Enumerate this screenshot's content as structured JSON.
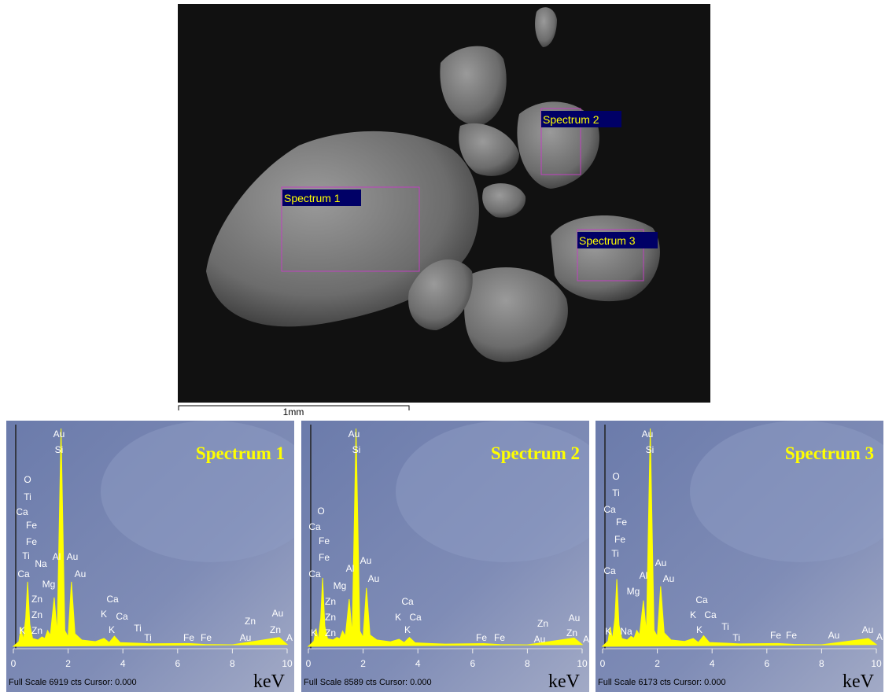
{
  "image": {
    "labels": [
      "Spectrum 1",
      "Spectrum 2",
      "Spectrum 3"
    ],
    "scale_bar": "1mm"
  },
  "chart_data": [
    {
      "type": "line",
      "title": "Spectrum 1",
      "footer": "Full Scale 6919 cts Cursor: 0.000",
      "x_label": "keV",
      "color": "#ffff00",
      "xlim": [
        0,
        10
      ],
      "xticks": [
        0,
        2,
        4,
        6,
        8,
        10
      ],
      "ylim": [
        0,
        6919
      ],
      "x": [
        0,
        0.2,
        0.28,
        0.36,
        0.45,
        0.52,
        0.6,
        0.7,
        0.9,
        1.04,
        1.15,
        1.25,
        1.35,
        1.49,
        1.6,
        1.74,
        1.88,
        2.0,
        2.12,
        2.25,
        2.5,
        3.0,
        3.31,
        3.5,
        3.69,
        3.9,
        4.51,
        5.0,
        6.4,
        7.0,
        8.0,
        9.71,
        10.0
      ],
      "values": [
        0,
        150,
        600,
        200,
        900,
        2050,
        700,
        250,
        200,
        300,
        250,
        500,
        350,
        1550,
        400,
        6919,
        500,
        300,
        2050,
        400,
        200,
        150,
        250,
        120,
        320,
        120,
        100,
        80,
        90,
        60,
        50,
        280,
        60
      ],
      "annotations": [
        "Au",
        "Si",
        "O",
        "Ti",
        "Ca",
        "Fe",
        "Fe",
        "Ti",
        "Na",
        "Al",
        "Au",
        "Ca",
        "Mg",
        "Au",
        "Zn",
        "Zn",
        "Zn",
        "K",
        "Ca",
        "K",
        "Ca",
        "K",
        "Ti",
        "Ti",
        "Fe",
        "Fe",
        "Zn",
        "Au",
        "Au",
        "Zn",
        "A"
      ]
    },
    {
      "type": "line",
      "title": "Spectrum 2",
      "footer": "Full Scale 8589 cts Cursor: 0.000",
      "x_label": "keV",
      "color": "#ffff00",
      "xlim": [
        0,
        10
      ],
      "xticks": [
        0,
        2,
        4,
        6,
        8,
        10
      ],
      "ylim": [
        0,
        8589
      ],
      "x": [
        0,
        0.2,
        0.28,
        0.36,
        0.45,
        0.52,
        0.6,
        0.7,
        0.9,
        1.04,
        1.15,
        1.25,
        1.35,
        1.49,
        1.6,
        1.74,
        1.88,
        2.0,
        2.12,
        2.25,
        2.5,
        3.0,
        3.31,
        3.5,
        3.69,
        3.9,
        4.51,
        5.0,
        6.4,
        7.0,
        8.0,
        9.71,
        10.0
      ],
      "values": [
        0,
        200,
        700,
        250,
        1100,
        2700,
        800,
        300,
        250,
        350,
        300,
        600,
        400,
        1860,
        450,
        8589,
        600,
        350,
        2300,
        450,
        250,
        180,
        280,
        150,
        350,
        140,
        110,
        90,
        110,
        70,
        60,
        330,
        70
      ],
      "annotations": [
        "Au",
        "Si",
        "O",
        "Ca",
        "Fe",
        "Fe",
        "Ca",
        "Al",
        "Au",
        "Mg",
        "Au",
        "Zn",
        "Zn",
        "Zn",
        "K",
        "Ca",
        "K",
        "Ca",
        "K",
        "Fe",
        "Fe",
        "Zn",
        "Au",
        "Au",
        "Zn",
        "A"
      ]
    },
    {
      "type": "line",
      "title": "Spectrum 3",
      "footer": "Full Scale 6173 cts Cursor: 0.000",
      "x_label": "keV",
      "color": "#ffff00",
      "xlim": [
        0,
        10
      ],
      "xticks": [
        0,
        2,
        4,
        6,
        8,
        10
      ],
      "ylim": [
        0,
        6173
      ],
      "x": [
        0,
        0.2,
        0.28,
        0.36,
        0.45,
        0.52,
        0.6,
        0.7,
        0.9,
        1.04,
        1.15,
        1.25,
        1.35,
        1.49,
        1.6,
        1.74,
        1.88,
        2.0,
        2.12,
        2.25,
        2.5,
        3.0,
        3.31,
        3.5,
        3.69,
        3.9,
        4.51,
        5.0,
        6.4,
        7.0,
        8.0,
        9.71,
        10.0
      ],
      "values": [
        0,
        150,
        550,
        200,
        800,
        1900,
        600,
        220,
        180,
        280,
        230,
        450,
        320,
        1300,
        380,
        6173,
        450,
        280,
        1700,
        380,
        180,
        140,
        220,
        110,
        300,
        110,
        90,
        70,
        80,
        55,
        45,
        220,
        50
      ],
      "annotations": [
        "Au",
        "Si",
        "O",
        "Ti",
        "Ca",
        "Fe",
        "Fe",
        "Ti",
        "Ca",
        "Al",
        "Au",
        "Mg",
        "Au",
        "Ca",
        "K",
        "Ca",
        "K",
        "Ti",
        "Ti",
        "K",
        "Na",
        "Fe",
        "Fe",
        "Au",
        "Au",
        "A"
      ]
    }
  ]
}
